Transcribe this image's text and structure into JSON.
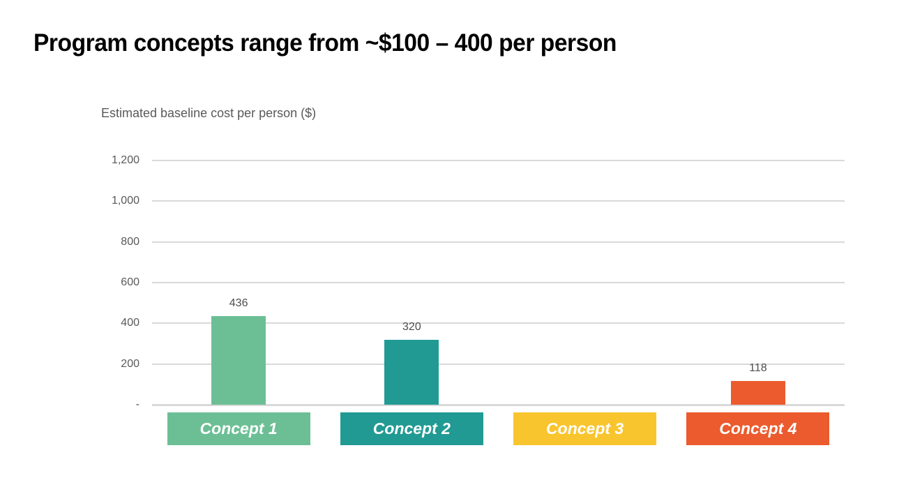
{
  "title": "Program concepts range from ~$100 – 400 per person",
  "chart_data": {
    "type": "bar",
    "title": "Program concepts range from ~$100 – 400 per person",
    "axis_title": "Estimated baseline cost per person ($)",
    "categories": [
      "Concept 1",
      "Concept 2",
      "Concept 3",
      "Concept 4"
    ],
    "values": [
      436,
      320,
      null,
      118
    ],
    "value_labels": [
      "436",
      "320",
      "",
      "118"
    ],
    "bar_colors": [
      "#6CBF95",
      "#219A93",
      "#F9C52E",
      "#EB5B2E"
    ],
    "xlabel": "",
    "ylabel": "Estimated baseline cost per person ($)",
    "ylim": [
      0,
      1200
    ],
    "grid": true,
    "legend_position": "none",
    "y_ticks": [
      {
        "value": 1200,
        "label": "1,200"
      },
      {
        "value": 1000,
        "label": "1,000"
      },
      {
        "value": 800,
        "label": "800"
      },
      {
        "value": 600,
        "label": "600"
      },
      {
        "value": 400,
        "label": "400"
      },
      {
        "value": 200,
        "label": "200"
      },
      {
        "value": 0,
        "label": "-"
      }
    ]
  },
  "colors": {
    "title_text": "#000000",
    "axis_text": "#595959",
    "data_label_text": "#4D4D4D",
    "gridline": "#D9D9D9",
    "chip_text": "#FFFFFF",
    "background": "#FFFFFF"
  }
}
